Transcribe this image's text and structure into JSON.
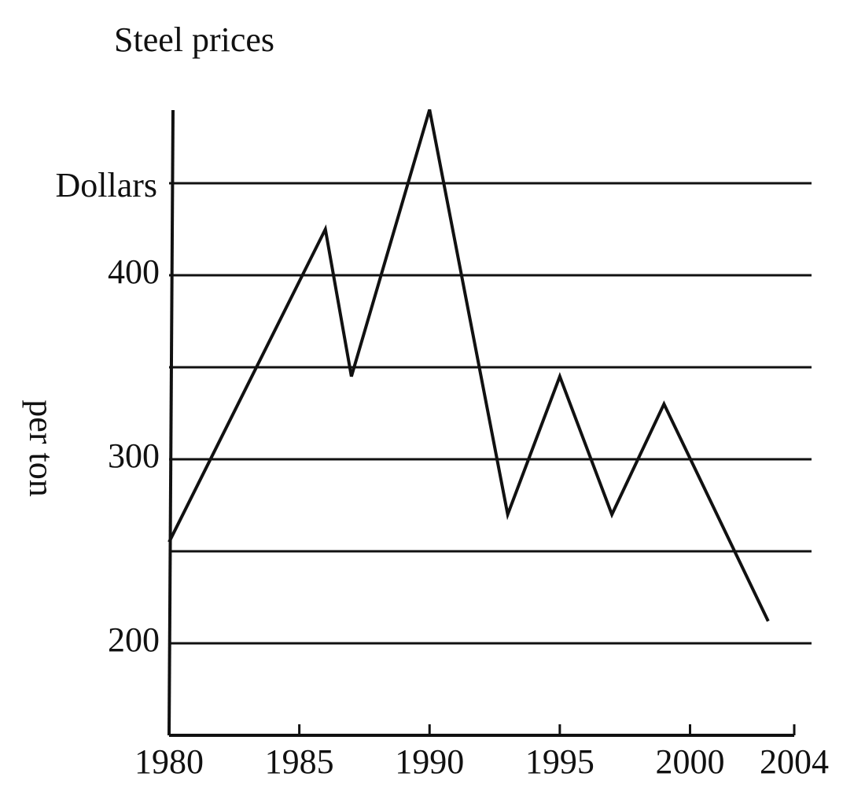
{
  "chart_data": {
    "type": "line",
    "title": "Steel prices",
    "y_label_top": "Dollars",
    "y_label_side": "per ton",
    "x": [
      1980,
      1986,
      1987,
      1990,
      1993,
      1995,
      1997,
      1999,
      2003
    ],
    "values": [
      255,
      425,
      345,
      490,
      270,
      345,
      270,
      330,
      212
    ],
    "color": "#111111",
    "xlim": [
      1980,
      2004
    ],
    "xticks": [
      1980,
      1985,
      1990,
      1995,
      2000,
      2004
    ],
    "ylim": [
      150,
      500
    ],
    "yticks": [
      200,
      300,
      400
    ],
    "gridlines": [
      200,
      250,
      300,
      350,
      400,
      450
    ]
  }
}
